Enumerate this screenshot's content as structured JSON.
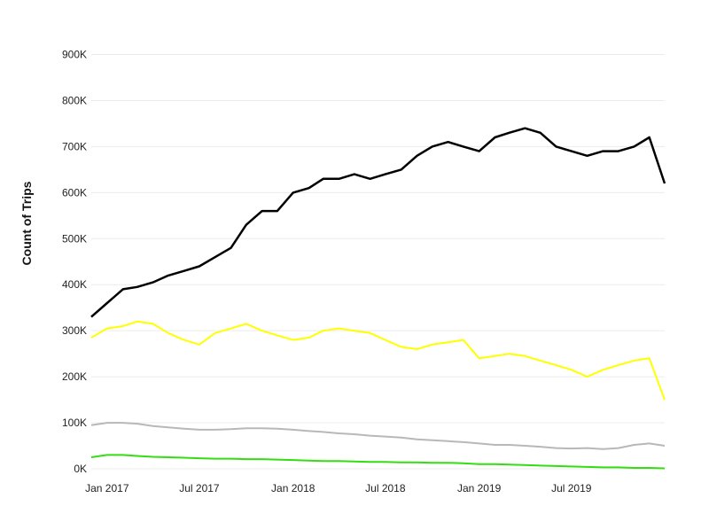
{
  "chart_data": {
    "type": "line",
    "title": "",
    "xlabel": "",
    "ylabel": "Count of Trips",
    "x_range": [
      "2016-12-01",
      "2019-12-31"
    ],
    "ylim": [
      0,
      980000
    ],
    "grid": true,
    "y_ticks": [
      {
        "value": 0,
        "label": "0K"
      },
      {
        "value": 100000,
        "label": "100K"
      },
      {
        "value": 200000,
        "label": "200K"
      },
      {
        "value": 300000,
        "label": "300K"
      },
      {
        "value": 400000,
        "label": "400K"
      },
      {
        "value": 500000,
        "label": "500K"
      },
      {
        "value": 600000,
        "label": "600K"
      },
      {
        "value": 700000,
        "label": "700K"
      },
      {
        "value": 800000,
        "label": "800K"
      },
      {
        "value": 900000,
        "label": "900K"
      }
    ],
    "x_ticks": [
      {
        "value": "2017-01-01",
        "label": "Jan 2017"
      },
      {
        "value": "2017-07-01",
        "label": "Jul 2017"
      },
      {
        "value": "2018-01-01",
        "label": "Jan 2018"
      },
      {
        "value": "2018-07-01",
        "label": "Jul 2018"
      },
      {
        "value": "2019-01-01",
        "label": "Jan 2019"
      },
      {
        "value": "2019-07-01",
        "label": "Jul 2019"
      }
    ],
    "series": [
      {
        "color": "#000000",
        "values": [
          [
            "2016-12-01",
            330000
          ],
          [
            "2017-01-01",
            360000
          ],
          [
            "2017-02-01",
            390000
          ],
          [
            "2017-03-01",
            395000
          ],
          [
            "2017-04-01",
            405000
          ],
          [
            "2017-05-01",
            420000
          ],
          [
            "2017-06-01",
            430000
          ],
          [
            "2017-07-01",
            440000
          ],
          [
            "2017-08-01",
            460000
          ],
          [
            "2017-09-01",
            480000
          ],
          [
            "2017-10-01",
            530000
          ],
          [
            "2017-11-01",
            560000
          ],
          [
            "2017-12-01",
            560000
          ],
          [
            "2018-01-01",
            600000
          ],
          [
            "2018-02-01",
            610000
          ],
          [
            "2018-03-01",
            630000
          ],
          [
            "2018-04-01",
            630000
          ],
          [
            "2018-05-01",
            640000
          ],
          [
            "2018-06-01",
            630000
          ],
          [
            "2018-07-01",
            640000
          ],
          [
            "2018-08-01",
            650000
          ],
          [
            "2018-09-01",
            680000
          ],
          [
            "2018-10-01",
            700000
          ],
          [
            "2018-11-01",
            710000
          ],
          [
            "2018-12-01",
            700000
          ],
          [
            "2019-01-01",
            690000
          ],
          [
            "2019-02-01",
            720000
          ],
          [
            "2019-03-01",
            730000
          ],
          [
            "2019-04-01",
            740000
          ],
          [
            "2019-05-01",
            730000
          ],
          [
            "2019-06-01",
            700000
          ],
          [
            "2019-07-01",
            690000
          ],
          [
            "2019-08-01",
            680000
          ],
          [
            "2019-09-01",
            690000
          ],
          [
            "2019-10-01",
            690000
          ],
          [
            "2019-11-01",
            700000
          ],
          [
            "2019-12-01",
            720000
          ],
          [
            "2019-12-31",
            620000
          ]
        ]
      },
      {
        "color": "#ffff00",
        "values": [
          [
            "2016-12-01",
            285000
          ],
          [
            "2017-01-01",
            305000
          ],
          [
            "2017-02-01",
            310000
          ],
          [
            "2017-03-01",
            320000
          ],
          [
            "2017-04-01",
            315000
          ],
          [
            "2017-05-01",
            295000
          ],
          [
            "2017-06-01",
            280000
          ],
          [
            "2017-07-01",
            270000
          ],
          [
            "2017-08-01",
            295000
          ],
          [
            "2017-09-01",
            305000
          ],
          [
            "2017-10-01",
            315000
          ],
          [
            "2017-11-01",
            300000
          ],
          [
            "2017-12-01",
            290000
          ],
          [
            "2018-01-01",
            280000
          ],
          [
            "2018-02-01",
            285000
          ],
          [
            "2018-03-01",
            300000
          ],
          [
            "2018-04-01",
            305000
          ],
          [
            "2018-05-01",
            300000
          ],
          [
            "2018-06-01",
            295000
          ],
          [
            "2018-07-01",
            280000
          ],
          [
            "2018-08-01",
            265000
          ],
          [
            "2018-09-01",
            260000
          ],
          [
            "2018-10-01",
            270000
          ],
          [
            "2018-11-01",
            275000
          ],
          [
            "2018-12-01",
            280000
          ],
          [
            "2019-01-01",
            240000
          ],
          [
            "2019-02-01",
            245000
          ],
          [
            "2019-03-01",
            250000
          ],
          [
            "2019-04-01",
            245000
          ],
          [
            "2019-05-01",
            235000
          ],
          [
            "2019-06-01",
            225000
          ],
          [
            "2019-07-01",
            215000
          ],
          [
            "2019-08-01",
            200000
          ],
          [
            "2019-09-01",
            215000
          ],
          [
            "2019-10-01",
            225000
          ],
          [
            "2019-11-01",
            235000
          ],
          [
            "2019-12-01",
            240000
          ],
          [
            "2019-12-31",
            150000
          ]
        ]
      },
      {
        "color": "#b8b8b8",
        "values": [
          [
            "2016-12-01",
            95000
          ],
          [
            "2017-01-01",
            100000
          ],
          [
            "2017-02-01",
            100000
          ],
          [
            "2017-03-01",
            98000
          ],
          [
            "2017-04-01",
            93000
          ],
          [
            "2017-05-01",
            90000
          ],
          [
            "2017-06-01",
            87000
          ],
          [
            "2017-07-01",
            85000
          ],
          [
            "2017-08-01",
            85000
          ],
          [
            "2017-09-01",
            86000
          ],
          [
            "2017-10-01",
            88000
          ],
          [
            "2017-11-01",
            88000
          ],
          [
            "2017-12-01",
            87000
          ],
          [
            "2018-01-01",
            85000
          ],
          [
            "2018-02-01",
            82000
          ],
          [
            "2018-03-01",
            80000
          ],
          [
            "2018-04-01",
            77000
          ],
          [
            "2018-05-01",
            75000
          ],
          [
            "2018-06-01",
            72000
          ],
          [
            "2018-07-01",
            70000
          ],
          [
            "2018-08-01",
            68000
          ],
          [
            "2018-09-01",
            64000
          ],
          [
            "2018-10-01",
            62000
          ],
          [
            "2018-11-01",
            60000
          ],
          [
            "2018-12-01",
            58000
          ],
          [
            "2019-01-01",
            55000
          ],
          [
            "2019-02-01",
            52000
          ],
          [
            "2019-03-01",
            52000
          ],
          [
            "2019-04-01",
            50000
          ],
          [
            "2019-05-01",
            48000
          ],
          [
            "2019-06-01",
            45000
          ],
          [
            "2019-07-01",
            44000
          ],
          [
            "2019-08-01",
            45000
          ],
          [
            "2019-09-01",
            43000
          ],
          [
            "2019-10-01",
            45000
          ],
          [
            "2019-11-01",
            52000
          ],
          [
            "2019-12-01",
            55000
          ],
          [
            "2019-12-31",
            50000
          ]
        ]
      },
      {
        "color": "#33dd11",
        "values": [
          [
            "2016-12-01",
            25000
          ],
          [
            "2017-01-01",
            30000
          ],
          [
            "2017-02-01",
            30000
          ],
          [
            "2017-03-01",
            28000
          ],
          [
            "2017-04-01",
            26000
          ],
          [
            "2017-05-01",
            25000
          ],
          [
            "2017-06-01",
            24000
          ],
          [
            "2017-07-01",
            23000
          ],
          [
            "2017-08-01",
            22000
          ],
          [
            "2017-09-01",
            22000
          ],
          [
            "2017-10-01",
            21000
          ],
          [
            "2017-11-01",
            21000
          ],
          [
            "2017-12-01",
            20000
          ],
          [
            "2018-01-01",
            19000
          ],
          [
            "2018-02-01",
            18000
          ],
          [
            "2018-03-01",
            17000
          ],
          [
            "2018-04-01",
            17000
          ],
          [
            "2018-05-01",
            16000
          ],
          [
            "2018-06-01",
            15000
          ],
          [
            "2018-07-01",
            15000
          ],
          [
            "2018-08-01",
            14000
          ],
          [
            "2018-09-01",
            14000
          ],
          [
            "2018-10-01",
            13000
          ],
          [
            "2018-11-01",
            13000
          ],
          [
            "2018-12-01",
            12000
          ],
          [
            "2019-01-01",
            10000
          ],
          [
            "2019-02-01",
            10000
          ],
          [
            "2019-03-01",
            9000
          ],
          [
            "2019-04-01",
            8000
          ],
          [
            "2019-05-01",
            7000
          ],
          [
            "2019-06-01",
            6000
          ],
          [
            "2019-07-01",
            5000
          ],
          [
            "2019-08-01",
            4000
          ],
          [
            "2019-09-01",
            3000
          ],
          [
            "2019-10-01",
            3000
          ],
          [
            "2019-11-01",
            2000
          ],
          [
            "2019-12-01",
            2000
          ],
          [
            "2019-12-31",
            1000
          ]
        ]
      }
    ]
  }
}
